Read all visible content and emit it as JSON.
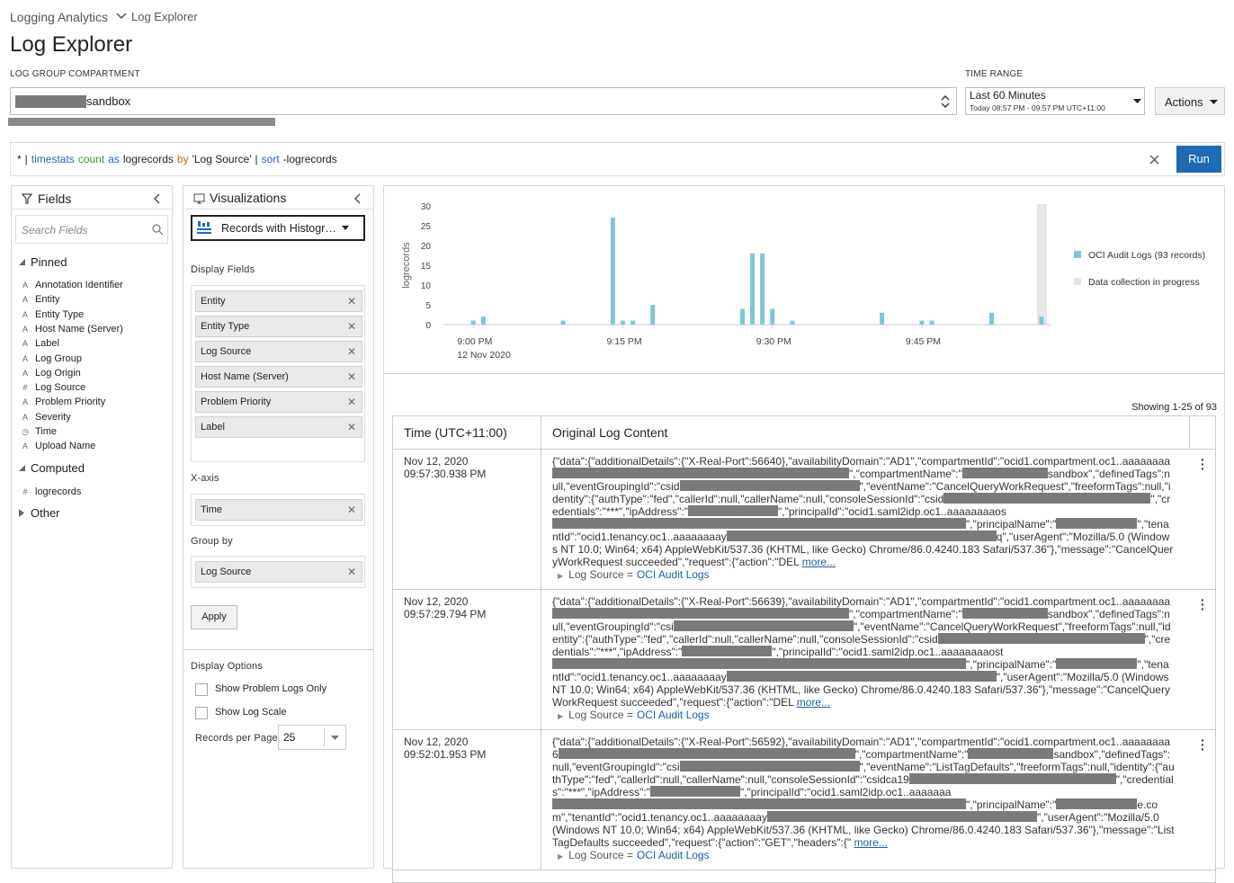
{
  "breadcrumb": {
    "parent": "Logging Analytics",
    "current": "Log Explorer"
  },
  "title": "Log Explorer",
  "compartment": {
    "label": "LOG GROUP COMPARTMENT",
    "value": "sandbox"
  },
  "time_range": {
    "label": "TIME RANGE",
    "value": "Last 60 Minutes",
    "detail": "Today 08:57 PM - 09:57 PM UTC+11:00"
  },
  "actions": "Actions",
  "query": {
    "tokens": [
      {
        "text": "*",
        "color": "#222"
      },
      {
        "text": "|",
        "color": "#222"
      },
      {
        "text": "timestats",
        "color": "#2a62b8"
      },
      {
        "text": "count",
        "color": "#3f8f3f"
      },
      {
        "text": "as",
        "color": "#2a62b8"
      },
      {
        "text": "logrecords",
        "color": "#222"
      },
      {
        "text": "by",
        "color": "#c06a1a"
      },
      {
        "text": "'Log Source'",
        "color": "#222"
      },
      {
        "text": "|",
        "color": "#222"
      },
      {
        "text": "sort",
        "color": "#2a62b8"
      },
      {
        "text": "-logrecords",
        "color": "#222"
      }
    ]
  },
  "run": "Run",
  "fields_panel": {
    "title": "Fields",
    "search_placeholder": "Search Fields",
    "groups": [
      {
        "name": "Pinned",
        "fields": [
          {
            "icon": "A",
            "name": "Annotation Identifier"
          },
          {
            "icon": "A",
            "name": "Entity"
          },
          {
            "icon": "A",
            "name": "Entity Type"
          },
          {
            "icon": "A",
            "name": "Host Name (Server)"
          },
          {
            "icon": "A",
            "name": "Label"
          },
          {
            "icon": "A",
            "name": "Log Group"
          },
          {
            "icon": "A",
            "name": "Log Origin"
          },
          {
            "icon": "#",
            "name": "Log Source"
          },
          {
            "icon": "A",
            "name": "Problem Priority"
          },
          {
            "icon": "A",
            "name": "Severity"
          },
          {
            "icon": "◷",
            "name": "Time"
          },
          {
            "icon": "A",
            "name": "Upload Name"
          }
        ]
      },
      {
        "name": "Computed",
        "fields": [
          {
            "icon": "#",
            "name": "logrecords"
          }
        ]
      },
      {
        "name": "Other",
        "fields": []
      }
    ]
  },
  "viz_panel": {
    "title": "Visualizations",
    "selected": "Records with Histogr…",
    "display_fields_label": "Display Fields",
    "display_fields": [
      "Entity",
      "Entity Type",
      "Log Source",
      "Host Name (Server)",
      "Problem Priority",
      "Label"
    ],
    "x_axis_label": "X-axis",
    "x_axis": [
      "Time"
    ],
    "group_by_label": "Group by",
    "group_by": [
      "Log Source"
    ],
    "apply": "Apply",
    "options_label": "Display Options",
    "options": [
      "Show Problem Logs Only",
      "Show Log Scale"
    ],
    "records_per_page_label": "Records per Page",
    "records_per_page": 25
  },
  "chart_data": {
    "type": "bar",
    "ylabel": "logrecords",
    "x": [
      0,
      1,
      9,
      14,
      15,
      16,
      18,
      27,
      28,
      29,
      30,
      32,
      41,
      45,
      46,
      52,
      57
    ],
    "xlim": [
      -3,
      58
    ],
    "xticks": [
      {
        "value": 0,
        "label": "9:00 PM"
      },
      {
        "value": 15,
        "label": "9:15 PM"
      },
      {
        "value": 30,
        "label": "9:30 PM"
      },
      {
        "value": 45,
        "label": "9:45 PM"
      }
    ],
    "xdate": "12 Nov 2020",
    "ylim": [
      0,
      30
    ],
    "yticks": [
      0,
      5,
      10,
      15,
      20,
      25,
      30
    ],
    "series": [
      {
        "name": "OCI Audit Logs (93 records)",
        "color": "#7ec6d8",
        "values": [
          1,
          2,
          1,
          27,
          1,
          1,
          5,
          4,
          18,
          18,
          4,
          1,
          3,
          1,
          1,
          3,
          2
        ]
      }
    ],
    "in_progress": {
      "name": "Data collection in progress",
      "color": "#e6e6e6",
      "x": 57
    }
  },
  "table": {
    "showing": "Showing 1-25 of 93",
    "columns": [
      "Time (UTC+11:00)",
      "Original Log Content"
    ],
    "rows": [
      {
        "date": "Nov 12, 2020",
        "time": "09:57:30.938 PM",
        "content": [
          "{\"data\":{\"additionalDetails\":{\"X-Real-Port\":56640},\"availabilityDomain\":\"AD1\",\"compartmentId\":\"ocid1.compartment.oc1..aaaaaaaa",
          "\",\"compartmentName\":\"",
          "sandbox\",\"definedTags\":null,\"eventGroupingId\":\"csid",
          "\",\"eventName\":\"CancelQueryWorkRequest\",\"freeformTags\":null,\"identity\":{\"authType\":\"fed\",\"callerId\":null,\"callerName\":null,\"consoleSessionId\":\"csid",
          "\",\"credentials\":\"***\",\"ipAddress\":\"",
          "\",\"principalId\":\"ocid1.saml2idp.oc1..aaaaaaaaos",
          "\",\"principalName\":\"",
          "\",\"tenantId\":\"ocid1.tenancy.oc1..aaaaaaaay",
          "q\",\"userAgent\":\"Mozilla/5.0 (Windows NT 10.0; Win64; x64) AppleWebKit/537.36 (KHTML, like Gecko) Chrome/86.0.4240.183 Safari/537.36\"},\"message\":\"CancelQueryWorkRequest succeeded\",\"request\":{\"action\":\"DEL "
        ],
        "more": "more...",
        "source_label": "Log Source =",
        "source_value": "OCI Audit Logs"
      },
      {
        "date": "Nov 12, 2020",
        "time": "09:57:29.794 PM",
        "content": [
          "{\"data\":{\"additionalDetails\":{\"X-Real-Port\":56639},\"availabilityDomain\":\"AD1\",\"compartmentId\":\"ocid1.compartment.oc1..aaaaaaaa",
          "\",\"compartmentName\":\"",
          "sandbox\",\"definedTags\":null,\"eventGroupingId\":\"csi",
          "\",\"eventName\":\"CancelQueryWorkRequest\",\"freeformTags\":null,\"identity\":{\"authType\":\"fed\",\"callerId\":null,\"callerName\":null,\"consoleSessionId\":\"csid",
          "\",\"credentials\":\"***\",\"ipAddress\":\"",
          "\",\"principalId\":\"ocid1.saml2idp.oc1..aaaaaaaaost",
          "\",\"principalName\":\"",
          "\",\"tenantId\":\"ocid1.tenancy.oc1..aaaaaaaay",
          "\",\"userAgent\":\"Mozilla/5.0 (Windows NT 10.0; Win64; x64) AppleWebKit/537.36 (KHTML, like Gecko) Chrome/86.0.4240.183 Safari/537.36\"},\"message\":\"CancelQueryWorkRequest succeeded\",\"request\":{\"action\":\"DEL "
        ],
        "more": "more...",
        "source_label": "Log Source =",
        "source_value": "OCI Audit Logs"
      },
      {
        "date": "Nov 12, 2020",
        "time": "09:52:01.953 PM",
        "content": [
          "{\"data\":{\"additionalDetails\":{\"X-Real-Port\":56592},\"availabilityDomain\":\"AD1\",\"compartmentId\":\"ocid1.compartment.oc1..aaaaaaaa6",
          "\",\"compartmentName\":\"",
          "sandbox\",\"definedTags\":null,\"eventGroupingId\":\"csi",
          "\",\"eventName\":\"ListTagDefaults\",\"freeformTags\":null,\"identity\":{\"authType\":\"fed\",\"callerId\":null,\"callerName\":null,\"consoleSessionId\":\"csidca19",
          "\",\"credentials\":\"***\",\"ipAddress\":\"",
          "\",\"principalId\":\"ocid1.saml2idp.oc1..aaaaaaa",
          "\",\"principalName\":\"",
          "e.com\",\"tenantId\":\"ocid1.tenancy.oc1..aaaaaaaay",
          "\",\"userAgent\":\"Mozilla/5.0 (Windows NT 10.0; Win64; x64) AppleWebKit/537.36 (KHTML, like Gecko) Chrome/86.0.4240.183 Safari/537.36\"},\"message\":\"ListTagDefaults succeeded\",\"request\":{\"action\":\"GET\",\"headers\":{\" "
        ],
        "more": "more...",
        "source_label": "Log Source =",
        "source_value": "OCI Audit Logs"
      }
    ]
  }
}
